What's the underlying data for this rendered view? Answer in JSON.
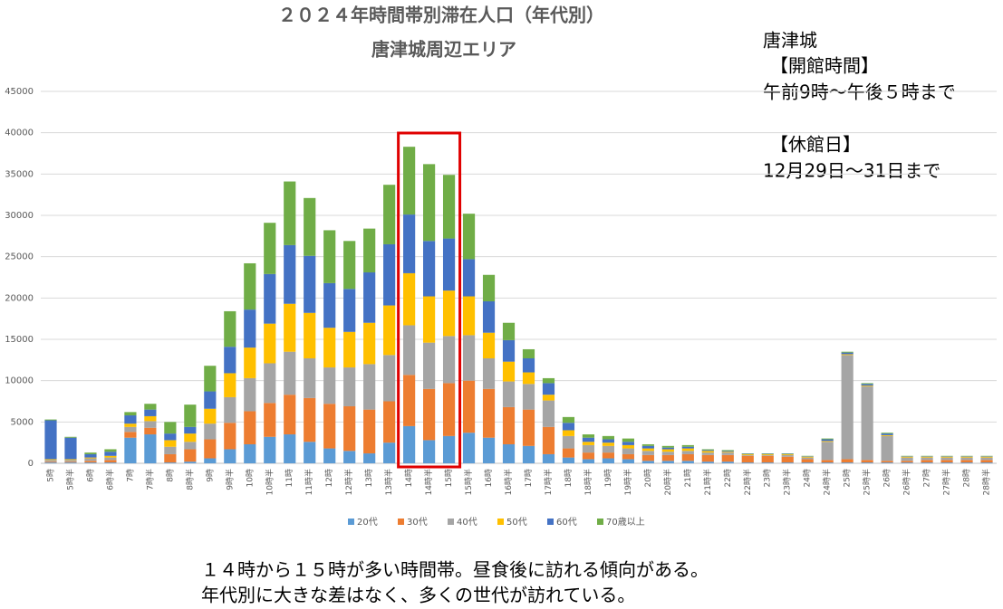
{
  "chart_data": {
    "type": "stacked_bar",
    "title": "２０２４年時間帯別滞在人口（年代別）",
    "subtitle": "唐津城周辺エリア",
    "side_note": [
      "唐津城",
      "【開館時間】",
      "午前9時～午後５時まで",
      "【休館日】",
      "12月29日～31日まで"
    ],
    "caption": [
      "１４時から１５時が多い時間帯。昼食後に訪れる傾向がある。",
      "年代別に大きな差はなく、多くの世代が訪れている。"
    ],
    "categories": [
      "5時",
      "5時半",
      "6時",
      "6時半",
      "7時",
      "7時半",
      "8時",
      "8時半",
      "9時",
      "9時半",
      "10時",
      "10時半",
      "11時",
      "11時半",
      "12時",
      "12時半",
      "13時",
      "13時半",
      "14時",
      "14時半",
      "15時",
      "15時半",
      "16時",
      "16時半",
      "17時",
      "17時半",
      "18時",
      "18時半",
      "19時",
      "19時半",
      "20時",
      "20時半",
      "21時",
      "21時半",
      "22時",
      "22時半",
      "23時",
      "23時半",
      "24時",
      "24時半",
      "25時",
      "25時半",
      "26時",
      "26時半",
      "27時",
      "27時半",
      "28時",
      "28時半"
    ],
    "series": [
      {
        "name": "20代",
        "color": "#5b9bd5",
        "values": [
          100,
          100,
          100,
          100,
          3100,
          3500,
          100,
          200,
          600,
          1700,
          2300,
          3200,
          3500,
          2600,
          1800,
          1500,
          1200,
          2500,
          4500,
          2800,
          3300,
          3700,
          3100,
          2300,
          2100,
          1100,
          700,
          500,
          600,
          500,
          300,
          300,
          300,
          200,
          200,
          100,
          100,
          100,
          100,
          100,
          100,
          100,
          100,
          100,
          100,
          100,
          100,
          100
        ]
      },
      {
        "name": "30代",
        "color": "#ed7d31",
        "values": [
          100,
          100,
          200,
          300,
          700,
          800,
          1000,
          1500,
          2300,
          3200,
          4000,
          4100,
          4800,
          5300,
          5400,
          5400,
          5300,
          5000,
          6200,
          6200,
          6400,
          6300,
          5900,
          4500,
          4400,
          3300,
          1100,
          800,
          700,
          600,
          700,
          700,
          800,
          800,
          800,
          800,
          800,
          700,
          400,
          300,
          400,
          300,
          200,
          200,
          300,
          300,
          300,
          300
        ]
      },
      {
        "name": "40代",
        "color": "#a5a5a5",
        "values": [
          200,
          200,
          300,
          300,
          600,
          800,
          900,
          900,
          1900,
          3100,
          4000,
          4800,
          5200,
          4800,
          4400,
          4700,
          5500,
          5600,
          6000,
          5600,
          5700,
          5500,
          3700,
          3100,
          3100,
          3200,
          1500,
          900,
          800,
          700,
          500,
          400,
          400,
          300,
          300,
          100,
          100,
          200,
          200,
          2200,
          12600,
          8900,
          3000,
          400,
          300,
          300,
          300,
          300
        ]
      },
      {
        "name": "50代",
        "color": "#ffc000",
        "values": [
          100,
          100,
          100,
          200,
          400,
          600,
          800,
          1000,
          1800,
          2900,
          3700,
          4800,
          5800,
          5500,
          4800,
          4300,
          5000,
          6000,
          6300,
          5600,
          5500,
          4700,
          3100,
          2400,
          1400,
          700,
          700,
          400,
          400,
          400,
          300,
          300,
          300,
          200,
          100,
          100,
          100,
          100,
          100,
          100,
          100,
          100,
          100,
          100,
          100,
          100,
          100,
          100
        ]
      },
      {
        "name": "60代",
        "color": "#4472c4",
        "values": [
          4700,
          2600,
          400,
          500,
          1000,
          800,
          800,
          800,
          2100,
          3200,
          4600,
          6000,
          7100,
          6900,
          5400,
          5200,
          6100,
          7400,
          7100,
          6700,
          6300,
          4500,
          3800,
          2600,
          1700,
          1400,
          900,
          500,
          400,
          400,
          300,
          200,
          200,
          100,
          100,
          50,
          50,
          50,
          50,
          200,
          200,
          200,
          200,
          50,
          50,
          50,
          50,
          50
        ]
      },
      {
        "name": "70歳以上",
        "color": "#70ad47",
        "values": [
          100,
          100,
          200,
          300,
          400,
          700,
          1400,
          2700,
          3100,
          4300,
          5600,
          6200,
          7700,
          7000,
          6400,
          5800,
          5300,
          7200,
          8200,
          9300,
          7700,
          5500,
          3200,
          2100,
          1100,
          600,
          700,
          400,
          400,
          400,
          200,
          200,
          200,
          100,
          100,
          50,
          50,
          50,
          50,
          100,
          100,
          100,
          100,
          50,
          50,
          50,
          50,
          50
        ]
      }
    ],
    "ylim": [
      0,
      45000
    ],
    "yticks": [
      0,
      5000,
      10000,
      15000,
      20000,
      25000,
      30000,
      35000,
      40000,
      45000
    ],
    "grid": true,
    "legend": "bottom",
    "highlight": {
      "from": "14時",
      "to": "15時",
      "color": "#e00000"
    }
  }
}
